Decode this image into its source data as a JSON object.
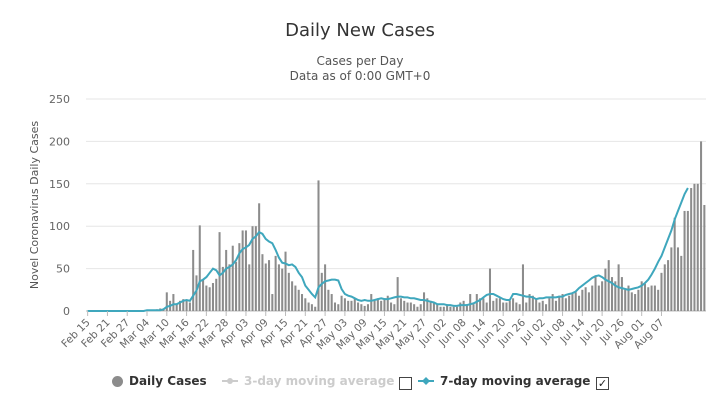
{
  "chart_data": {
    "type": "bar",
    "title": "Daily New Cases",
    "subtitle_1": "Cases per Day",
    "subtitle_2": "Data as of 0:00 GMT+0",
    "ylabel": "Novel Coronavirus Daily Cases",
    "ylim": [
      0,
      250
    ],
    "yticks": [
      0,
      50,
      100,
      150,
      200,
      250
    ],
    "start_date": "2020-02-15",
    "xtick_labels": [
      "Feb 15",
      "Feb 21",
      "Feb 27",
      "Mar 04",
      "Mar 10",
      "Mar 16",
      "Mar 22",
      "Mar 28",
      "Apr 03",
      "Apr 09",
      "Apr 15",
      "Apr 21",
      "Apr 27",
      "May 03",
      "May 09",
      "May 15",
      "May 21",
      "May 27",
      "Jun 02",
      "Jun 08",
      "Jun 14",
      "Jun 20",
      "Jun 26",
      "Jul 02",
      "Jul 08",
      "Jul 14",
      "Jul 20",
      "Jul 26",
      "Aug 01",
      "Aug 07"
    ],
    "grid": true,
    "series": [
      {
        "name": "Daily Cases",
        "color": "#8c8c8c",
        "values": [
          0,
          0,
          0,
          0,
          0,
          0,
          0,
          0,
          0,
          0,
          0,
          0,
          0,
          0,
          0,
          0,
          0,
          1,
          1,
          1,
          1,
          2,
          3,
          3,
          22,
          12,
          20,
          9,
          12,
          14,
          13,
          10,
          72,
          42,
          101,
          37,
          30,
          28,
          33,
          38,
          93,
          52,
          72,
          55,
          77,
          58,
          80,
          95,
          95,
          55,
          100,
          100,
          127,
          67,
          56,
          60,
          20,
          65,
          55,
          50,
          70,
          45,
          35,
          30,
          25,
          20,
          15,
          10,
          8,
          5,
          154,
          45,
          55,
          25,
          20,
          10,
          8,
          18,
          15,
          12,
          12,
          15,
          10,
          8,
          6,
          8,
          20,
          12,
          15,
          12,
          15,
          18,
          10,
          8,
          40,
          15,
          12,
          10,
          10,
          8,
          5,
          8,
          22,
          15,
          12,
          10,
          8,
          5,
          5,
          8,
          5,
          5,
          5,
          10,
          12,
          8,
          20,
          8,
          20,
          15,
          15,
          10,
          50,
          12,
          15,
          15,
          10,
          10,
          12,
          15,
          10,
          8,
          55,
          10,
          20,
          18,
          15,
          10,
          12,
          8,
          15,
          20,
          12,
          18,
          20,
          15,
          18,
          20,
          22,
          18,
          25,
          28,
          22,
          30,
          42,
          30,
          35,
          50,
          60,
          40,
          35,
          55,
          40,
          25,
          30,
          22,
          20,
          25,
          35,
          32,
          28,
          30,
          30,
          25,
          45,
          55,
          60,
          75,
          110,
          75,
          65,
          118,
          118,
          145,
          150,
          150,
          200,
          125
        ],
        "moving_avg_7day": [
          0,
          0,
          0,
          0,
          0,
          0,
          0,
          0,
          0,
          0,
          0,
          0,
          0,
          0,
          0,
          0,
          0,
          0,
          1,
          1,
          1,
          1,
          1,
          2,
          5,
          6,
          8,
          8,
          10,
          12,
          13,
          12,
          18,
          24,
          35,
          37,
          40,
          45,
          50,
          48,
          42,
          45,
          50,
          52,
          55,
          60,
          68,
          73,
          75,
          78,
          85,
          88,
          93,
          91,
          85,
          82,
          80,
          72,
          63,
          57,
          56,
          54,
          55,
          52,
          45,
          40,
          30,
          25,
          20,
          16,
          28,
          32,
          35,
          36,
          37,
          37,
          36,
          26,
          20,
          18,
          17,
          15,
          13,
          12,
          13,
          12,
          12,
          13,
          14,
          15,
          14,
          14,
          15,
          16,
          17,
          17,
          16,
          16,
          15,
          15,
          14,
          13,
          13,
          12,
          11,
          10,
          8,
          8,
          8,
          7,
          7,
          6,
          6,
          7,
          7,
          7,
          8,
          9,
          11,
          13,
          16,
          19,
          20,
          20,
          18,
          16,
          14,
          13,
          13,
          20,
          20,
          19,
          18,
          17,
          17,
          16,
          14,
          15,
          15,
          16,
          16,
          16,
          16,
          17,
          17,
          19,
          20,
          21,
          23,
          27,
          30,
          33,
          36,
          39,
          41,
          42,
          40,
          37,
          35,
          33,
          30,
          28,
          27,
          26,
          25,
          26,
          27,
          28,
          30,
          33,
          37,
          43,
          50,
          58,
          65,
          75,
          85,
          95,
          108,
          118,
          128,
          138,
          145
        ]
      },
      {
        "name": "3-day moving average",
        "color": "#cccccc"
      },
      {
        "name": "7-day moving average",
        "color": "#3fa7bd"
      }
    ],
    "legend_placement": "bottom"
  },
  "legend": {
    "daily_cases": "Daily Cases",
    "ma3": "3-day moving average",
    "ma7": "7-day moving average",
    "ma3_checked": false,
    "ma7_checked": true,
    "check_glyph": "✓"
  }
}
